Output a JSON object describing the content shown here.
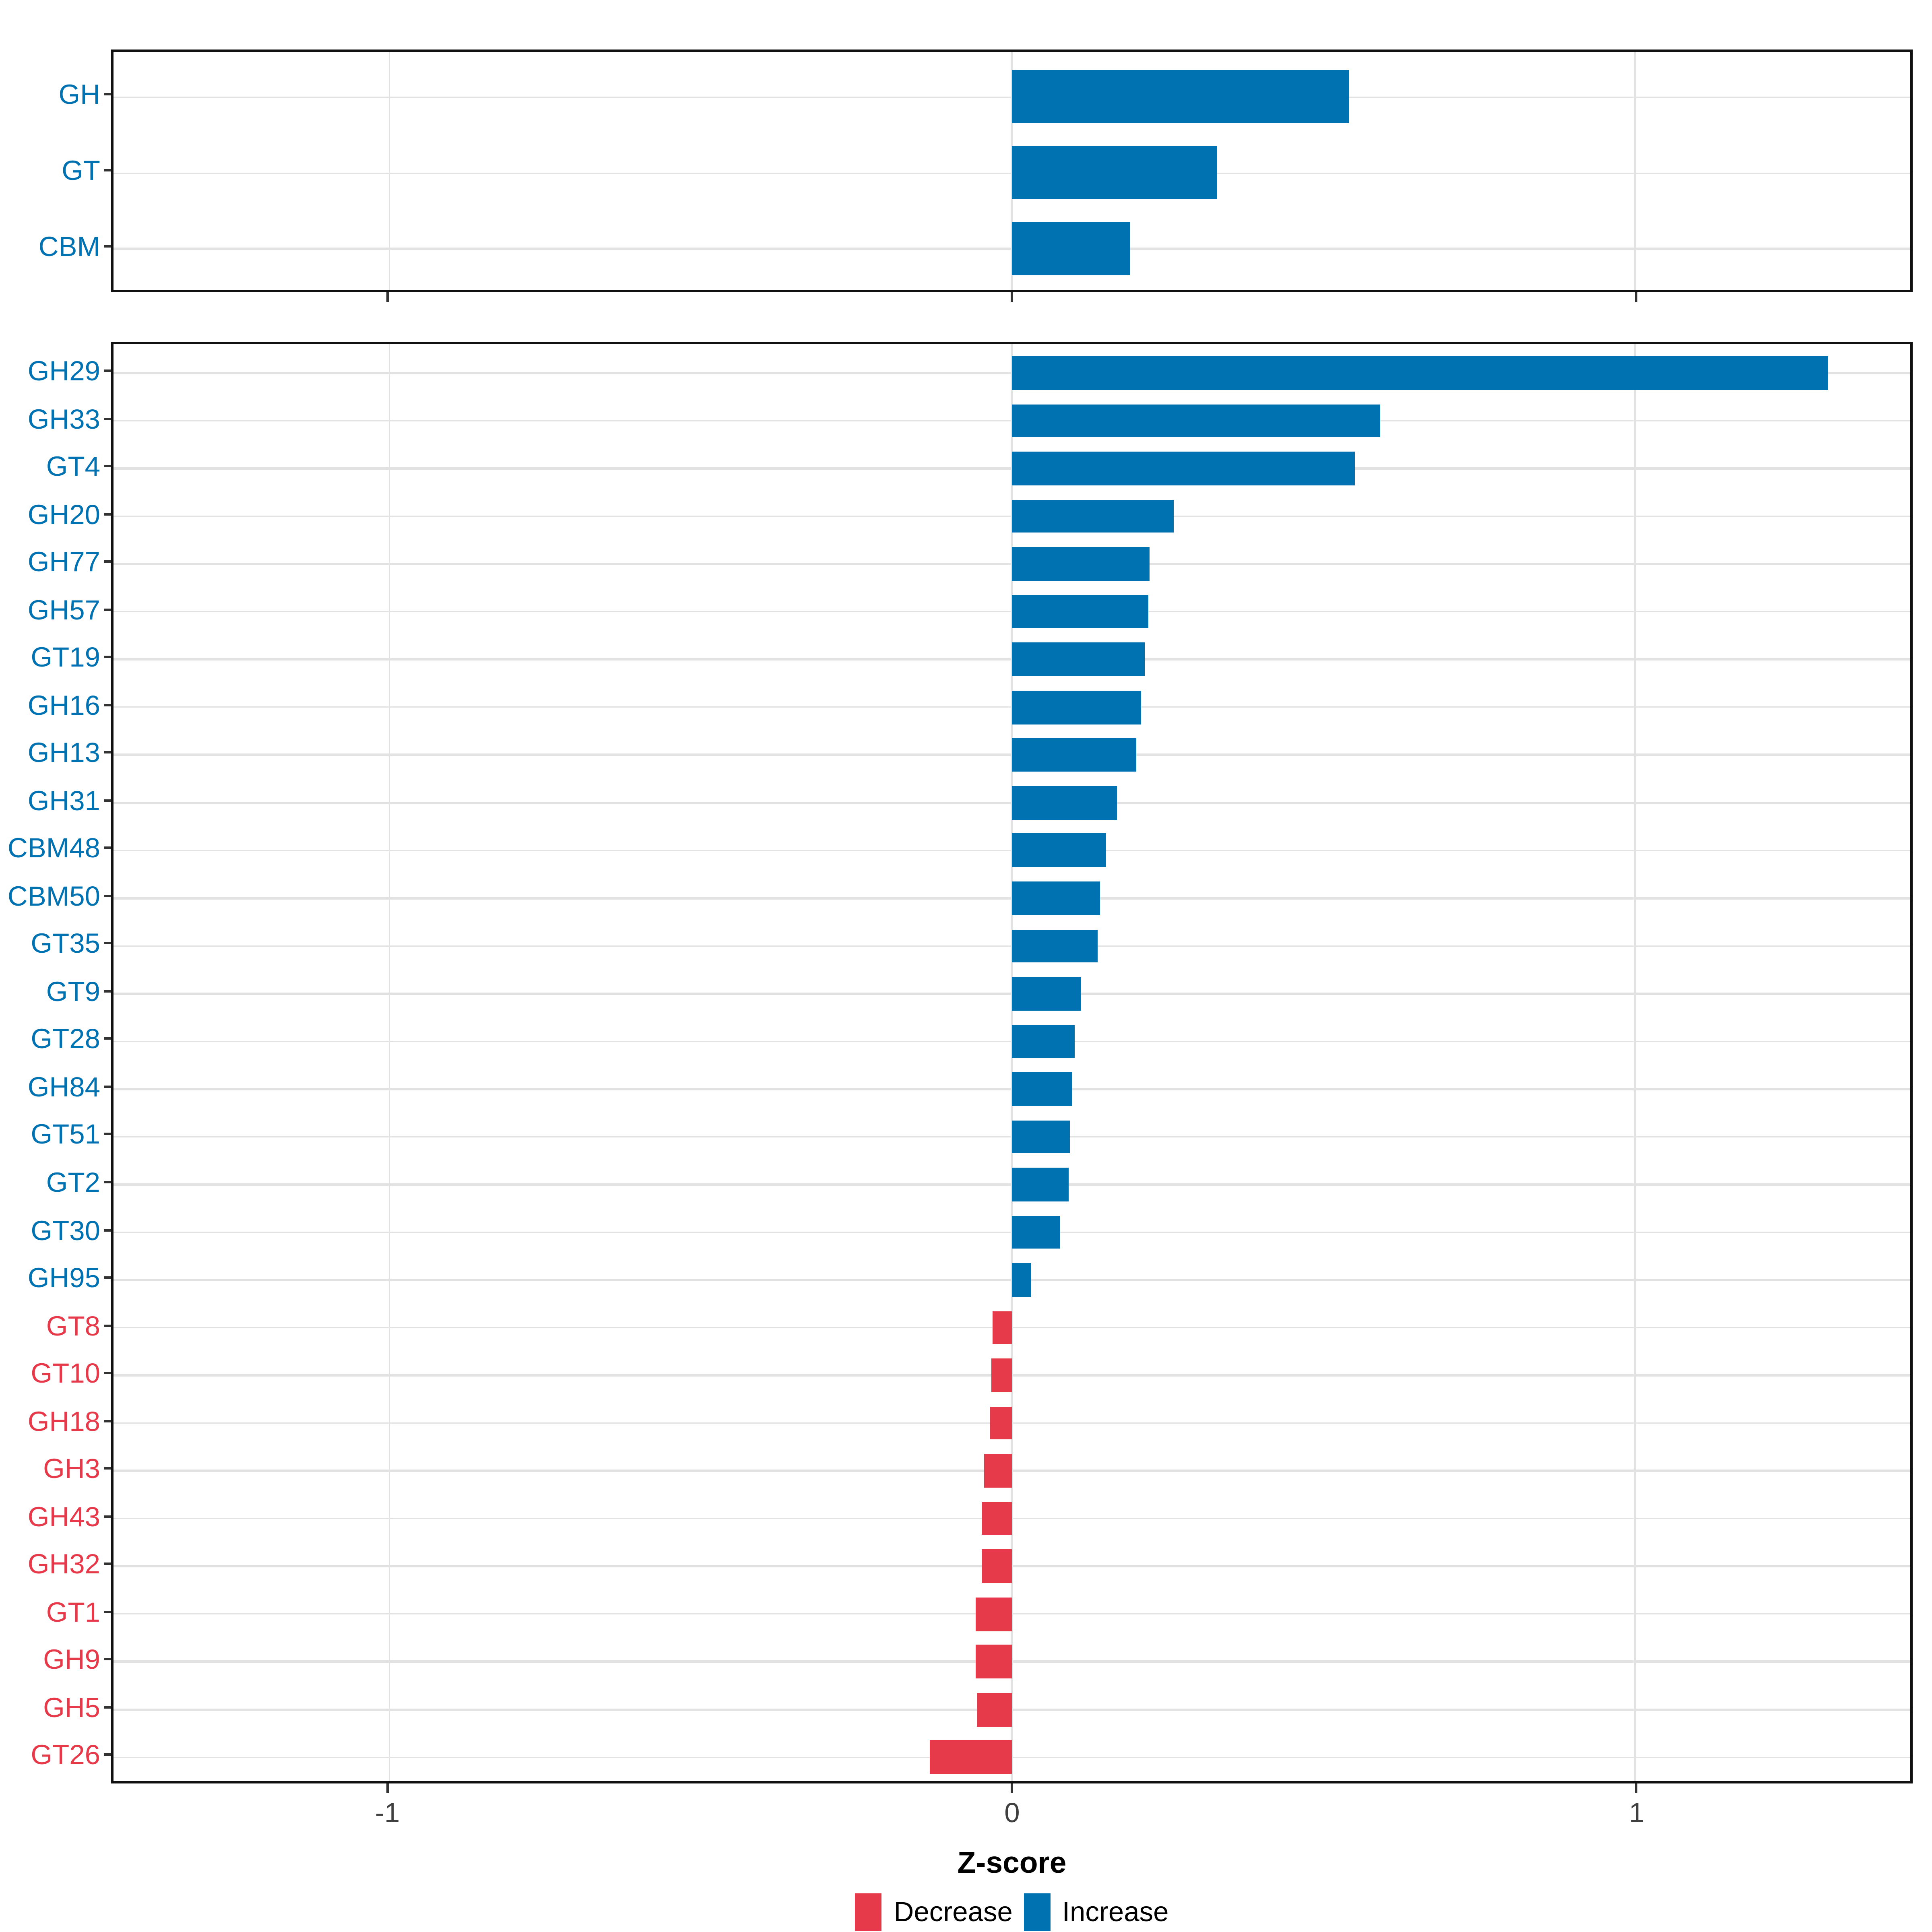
{
  "colors": {
    "increase": "#0072B2",
    "decrease": "#E6394A",
    "grid": "#E2E2E2",
    "panel_border": "#111111",
    "tick": "#333333",
    "tick_label": "#404040",
    "axis_title": "#000000",
    "background": "#FFFFFF"
  },
  "axis": {
    "label": "Z-score",
    "tick_labels": [
      "-1",
      "0",
      "1"
    ],
    "tick_values": [
      -1,
      0,
      1
    ],
    "xlim": [
      -1.4425,
      1.4425
    ]
  },
  "legend": {
    "position": "bottom",
    "items": [
      {
        "label": "Decrease",
        "color_key": "decrease"
      },
      {
        "label": "Increase",
        "color_key": "increase"
      }
    ]
  },
  "chart_data": [
    {
      "type": "bar",
      "orientation": "horizontal",
      "panel": "cazyme-class",
      "title": "",
      "xlabel": "",
      "ylabel": "",
      "xlim": [
        -1.4425,
        1.4425
      ],
      "grid": true,
      "categories": [
        "GH",
        "GT",
        "CBM"
      ],
      "values": [
        0.54,
        0.33,
        0.19
      ]
    },
    {
      "type": "bar",
      "orientation": "horizontal",
      "panel": "cazyme-family",
      "title": "",
      "xlabel": "Z-score",
      "ylabel": "",
      "xlim": [
        -1.4425,
        1.4425
      ],
      "grid": true,
      "categories": [
        "GH29",
        "GH33",
        "GT4",
        "GH20",
        "GH77",
        "GH57",
        "GT19",
        "GH16",
        "GH13",
        "GH31",
        "CBM48",
        "CBM50",
        "GT35",
        "GT9",
        "GT28",
        "GH84",
        "GT51",
        "GT2",
        "GT30",
        "GH95",
        "GT8",
        "GT10",
        "GH18",
        "GH3",
        "GH43",
        "GH32",
        "GT1",
        "GH9",
        "GH5",
        "GT26"
      ],
      "values": [
        1.31,
        0.59,
        0.55,
        0.26,
        0.22,
        0.219,
        0.213,
        0.207,
        0.199,
        0.169,
        0.151,
        0.141,
        0.138,
        0.11,
        0.101,
        0.096,
        0.092,
        0.09,
        0.078,
        0.03,
        -0.032,
        -0.033,
        -0.035,
        -0.045,
        -0.048,
        -0.048,
        -0.059,
        -0.058,
        -0.057,
        -0.133
      ]
    }
  ]
}
